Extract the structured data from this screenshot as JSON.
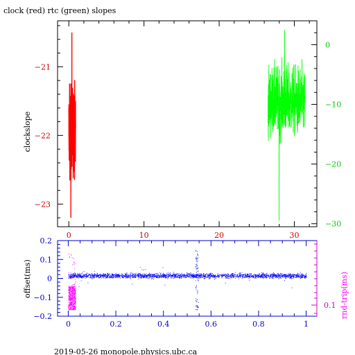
{
  "figure": {
    "footer": "2019-05-26 monopole.physics.ubc.ca"
  },
  "chart_data": [
    {
      "type": "line",
      "title": "clock (red) rtc (green) slopes",
      "ylabel": "clockslope",
      "xlim": [
        -1.5,
        33.0
      ],
      "xticks": [
        0,
        10,
        20,
        30
      ],
      "ylim_left": [
        -23.33,
        -20.33
      ],
      "yticks_left": [
        -21,
        -22,
        -23
      ],
      "ylim_right": [
        -30.5,
        4.0
      ],
      "yticks_right": [
        0,
        -10,
        -20,
        -30
      ],
      "colors": {
        "clock": "#ff0000",
        "rtc": "#00ff00",
        "axes": "#000000",
        "xticks": "#cc0000",
        "right_axis": "#00cc00"
      },
      "series": [
        {
          "name": "clock",
          "color": "#ff0000",
          "axis": "left",
          "x_range": [
            0.0,
            0.9
          ],
          "y_center": -21.9,
          "y_spread": 0.45,
          "y_min": -23.2,
          "y_max": -20.5
        },
        {
          "name": "rtc",
          "color": "#00ff00",
          "axis": "right",
          "x_range": [
            26.5,
            31.4
          ],
          "y_center": -9.5,
          "y_spread": 4.5,
          "y_min": -29.5,
          "y_max": 2.5
        }
      ]
    },
    {
      "type": "scatter",
      "ylabel": "offset(ms)",
      "ylabel_right": "rnd-trip(ms)",
      "xlim": [
        -0.045,
        1.045
      ],
      "xticks": [
        0,
        0.2,
        0.4,
        0.6,
        0.8,
        1
      ],
      "ylim": [
        -0.2,
        0.2
      ],
      "yticks": [
        0.2,
        0.1,
        0,
        -0.1,
        -0.2
      ],
      "right_tick_label": "0.1",
      "colors": {
        "offset": "#0000ff",
        "rnd_trip": "#ff00ff",
        "axes": "#0000cc",
        "right_axis": "#cc00cc"
      },
      "series": [
        {
          "name": "offset",
          "color": "#0000ff",
          "x_range": [
            0.0,
            1.0
          ],
          "y_center": 0.015,
          "y_spread": 0.02,
          "spike_x": 0.54,
          "spike_y_range": [
            -0.17,
            0.16
          ]
        },
        {
          "name": "rnd-trip",
          "color": "#ff00ff",
          "x_range": [
            0.0,
            0.03
          ],
          "y_range": [
            -0.165,
            -0.04
          ],
          "spike_max": 0.15
        }
      ]
    }
  ]
}
